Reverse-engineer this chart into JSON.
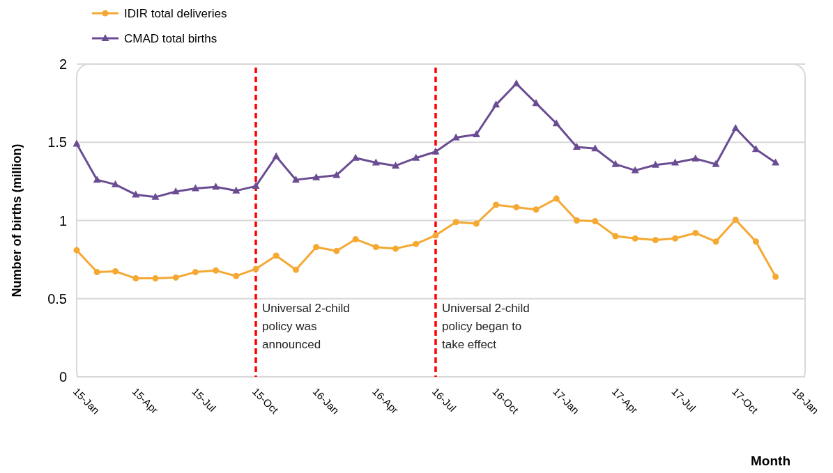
{
  "chart_data": {
    "type": "line",
    "ylabel": "Number of births (million)",
    "xlabel": "Month",
    "x": [
      "2015-01",
      "2015-02",
      "2015-03",
      "2015-04",
      "2015-05",
      "2015-06",
      "2015-07",
      "2015-08",
      "2015-09",
      "2015-10",
      "2015-11",
      "2015-12",
      "2016-01",
      "2016-02",
      "2016-03",
      "2016-04",
      "2016-05",
      "2016-06",
      "2016-07",
      "2016-08",
      "2016-09",
      "2016-10",
      "2016-11",
      "2016-12",
      "2017-01",
      "2017-02",
      "2017-03",
      "2017-04",
      "2017-05",
      "2017-06",
      "2017-07",
      "2017-08",
      "2017-09",
      "2017-10",
      "2017-11",
      "2017-12"
    ],
    "series": [
      {
        "name": "IDIR total deliveries",
        "color": "#f5a832",
        "marker": "circle",
        "values": [
          0.81,
          0.67,
          0.675,
          0.63,
          0.63,
          0.635,
          0.67,
          0.68,
          0.645,
          0.69,
          0.775,
          0.685,
          0.83,
          0.805,
          0.88,
          0.83,
          0.82,
          0.85,
          0.905,
          0.99,
          0.98,
          1.1,
          1.085,
          1.07,
          1.14,
          1.0,
          0.995,
          0.9,
          0.885,
          0.875,
          0.885,
          0.92,
          0.865,
          1.005,
          0.865,
          0.64
        ]
      },
      {
        "name": "CMAD total births",
        "color": "#6a4c93",
        "marker": "triangle",
        "values": [
          1.49,
          1.26,
          1.23,
          1.165,
          1.15,
          1.185,
          1.205,
          1.215,
          1.19,
          1.22,
          1.41,
          1.26,
          1.275,
          1.29,
          1.4,
          1.37,
          1.35,
          1.4,
          1.44,
          1.53,
          1.55,
          1.74,
          1.875,
          1.75,
          1.62,
          1.47,
          1.46,
          1.36,
          1.32,
          1.355,
          1.37,
          1.395,
          1.36,
          1.59,
          1.455,
          1.37
        ]
      }
    ],
    "xlim": [
      "2015-01",
      "2018-01-15"
    ],
    "xticks": [
      {
        "value": "2015-01",
        "label": "15-Jan"
      },
      {
        "value": "2015-04",
        "label": "15-Apr"
      },
      {
        "value": "2015-07",
        "label": "15-Jul"
      },
      {
        "value": "2015-10",
        "label": "15-Oct"
      },
      {
        "value": "2016-01",
        "label": "16-Jan"
      },
      {
        "value": "2016-04",
        "label": "16-Apr"
      },
      {
        "value": "2016-07",
        "label": "16-Jul"
      },
      {
        "value": "2016-10",
        "label": "16-Oct"
      },
      {
        "value": "2017-01",
        "label": "17-Jan"
      },
      {
        "value": "2017-04",
        "label": "17-Apr"
      },
      {
        "value": "2017-07",
        "label": "17-Jul"
      },
      {
        "value": "2017-10",
        "label": "17-Oct"
      },
      {
        "value": "2018-01",
        "label": "18-Jan"
      }
    ],
    "ylim": [
      0,
      2
    ],
    "yticks": [
      0,
      0.5,
      1,
      1.5,
      2
    ],
    "grid": "y",
    "legend": "top left",
    "ref_lines": [
      {
        "axis": "x",
        "value": "2015-10",
        "label": "Universal 2-child policy was announced",
        "color": "#ff0000",
        "line_style": "dashed"
      },
      {
        "axis": "x",
        "value": "2016-07",
        "label": "Universal 2-child policy began to take effect",
        "color": "#ff0000",
        "line_style": "dashed"
      }
    ]
  }
}
